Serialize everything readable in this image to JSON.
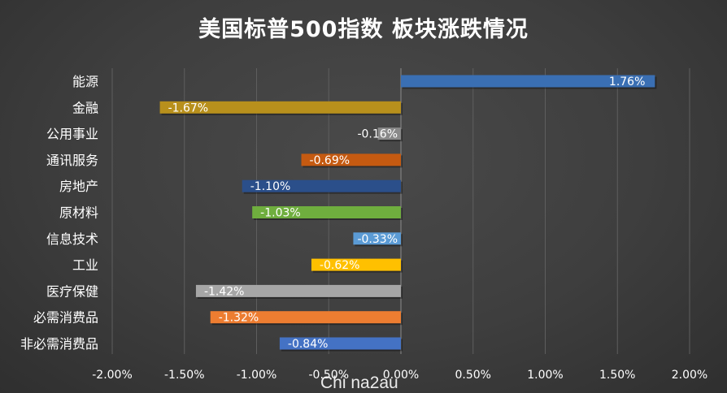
{
  "chart_data": {
    "type": "bar",
    "orientation": "horizontal",
    "title": "美国标普500指数 板块涨跌情况",
    "categories": [
      "能源",
      "金融",
      "公用事业",
      "通讯服务",
      "房地产",
      "原材料",
      "信息技术",
      "工业",
      "医疗保健",
      "必需消费品",
      "非必需消费品"
    ],
    "values": [
      1.76,
      -1.67,
      -0.16,
      -0.69,
      -1.1,
      -1.03,
      -0.33,
      -0.62,
      -1.42,
      -1.32,
      -0.84
    ],
    "value_labels": [
      "1.76%",
      "-1.67%",
      "-0.16%",
      "-0.69%",
      "-1.10%",
      "-1.03%",
      "-0.33%",
      "-0.62%",
      "-1.42%",
      "-1.32%",
      "-0.84%"
    ],
    "bar_colors": [
      "#3a6fb3",
      "#b8901c",
      "#8a8a8a",
      "#c55a11",
      "#2b4f8a",
      "#6fae3e",
      "#5b9bd5",
      "#ffc000",
      "#a6a6a6",
      "#ed7d31",
      "#4472c4"
    ],
    "xlim": [
      -2.0,
      2.0
    ],
    "xticks": [
      -2.0,
      -1.5,
      -1.0,
      -0.5,
      0.0,
      0.5,
      1.0,
      1.5,
      2.0
    ],
    "xtick_labels": [
      "-2.00%",
      "-1.50%",
      "-1.00%",
      "-0.50%",
      "0.00%",
      "0.50%",
      "1.00%",
      "1.50%",
      "2.00%"
    ],
    "xlabel": "",
    "ylabel": "",
    "grid": "vertical",
    "legend": "none"
  },
  "watermark": "Chi na2au"
}
